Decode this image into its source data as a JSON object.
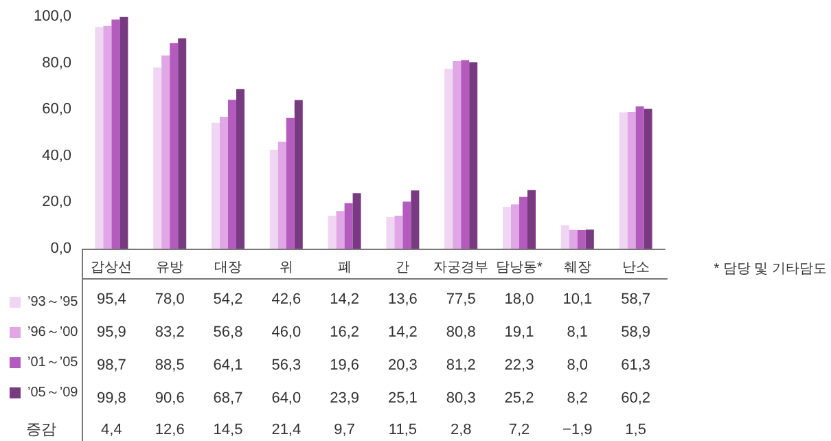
{
  "chart_data": {
    "type": "bar",
    "categories": [
      "갑상선",
      "유방",
      "대장",
      "위",
      "폐",
      "간",
      "자궁경부",
      "담낭동*",
      "췌장",
      "난소"
    ],
    "series": [
      {
        "name": "’93～’95",
        "color": "#f0d6f2",
        "values": [
          95.4,
          78.0,
          54.2,
          42.6,
          14.2,
          13.6,
          77.5,
          18.0,
          10.1,
          58.7
        ],
        "value_labels": [
          "95,4",
          "78,0",
          "54,2",
          "42,6",
          "14,2",
          "13,6",
          "77,5",
          "18,0",
          "10,1",
          "58,7"
        ]
      },
      {
        "name": "’96～’00",
        "color": "#e0a6e6",
        "values": [
          95.9,
          83.2,
          56.8,
          46.0,
          16.2,
          14.2,
          80.8,
          19.1,
          8.1,
          58.9
        ],
        "value_labels": [
          "95,9",
          "83,2",
          "56,8",
          "46,0",
          "16,2",
          "14,2",
          "80,8",
          "19,1",
          "8,1",
          "58,9"
        ]
      },
      {
        "name": "’01～’05",
        "color": "#b45cbe",
        "values": [
          98.7,
          88.5,
          64.1,
          56.3,
          19.6,
          20.3,
          81.2,
          22.3,
          8.0,
          61.3
        ],
        "value_labels": [
          "98,7",
          "88,5",
          "64,1",
          "56,3",
          "19,6",
          "20,3",
          "81,2",
          "22,3",
          "8,0",
          "61,3"
        ]
      },
      {
        "name": "’05～’09",
        "color": "#783a80",
        "values": [
          99.8,
          90.6,
          68.7,
          64.0,
          23.9,
          25.1,
          80.3,
          25.2,
          8.2,
          60.2
        ],
        "value_labels": [
          "99,8",
          "90,6",
          "68,7",
          "64,0",
          "23,9",
          "25,1",
          "80,3",
          "25,2",
          "8,2",
          "60,2"
        ]
      }
    ],
    "annotations": [
      "증감",
      "4,4",
      "12,6",
      "14,5",
      "21,4",
      "9,7",
      "11,5",
      "2,8",
      "7,2",
      "−1,9",
      "1,5",
      "* 담당 및 기타담도"
    ],
    "ylim": [
      0,
      100
    ],
    "yticks": [
      {
        "value": 0,
        "label": "0,0"
      },
      {
        "value": 20,
        "label": "20,0"
      },
      {
        "value": 40,
        "label": "40,0"
      },
      {
        "value": 60,
        "label": "60,0"
      },
      {
        "value": 80,
        "label": "80,0"
      },
      {
        "value": 100,
        "label": "100,0"
      }
    ],
    "grid": false,
    "legend": "bottom left",
    "data_labels": false
  }
}
